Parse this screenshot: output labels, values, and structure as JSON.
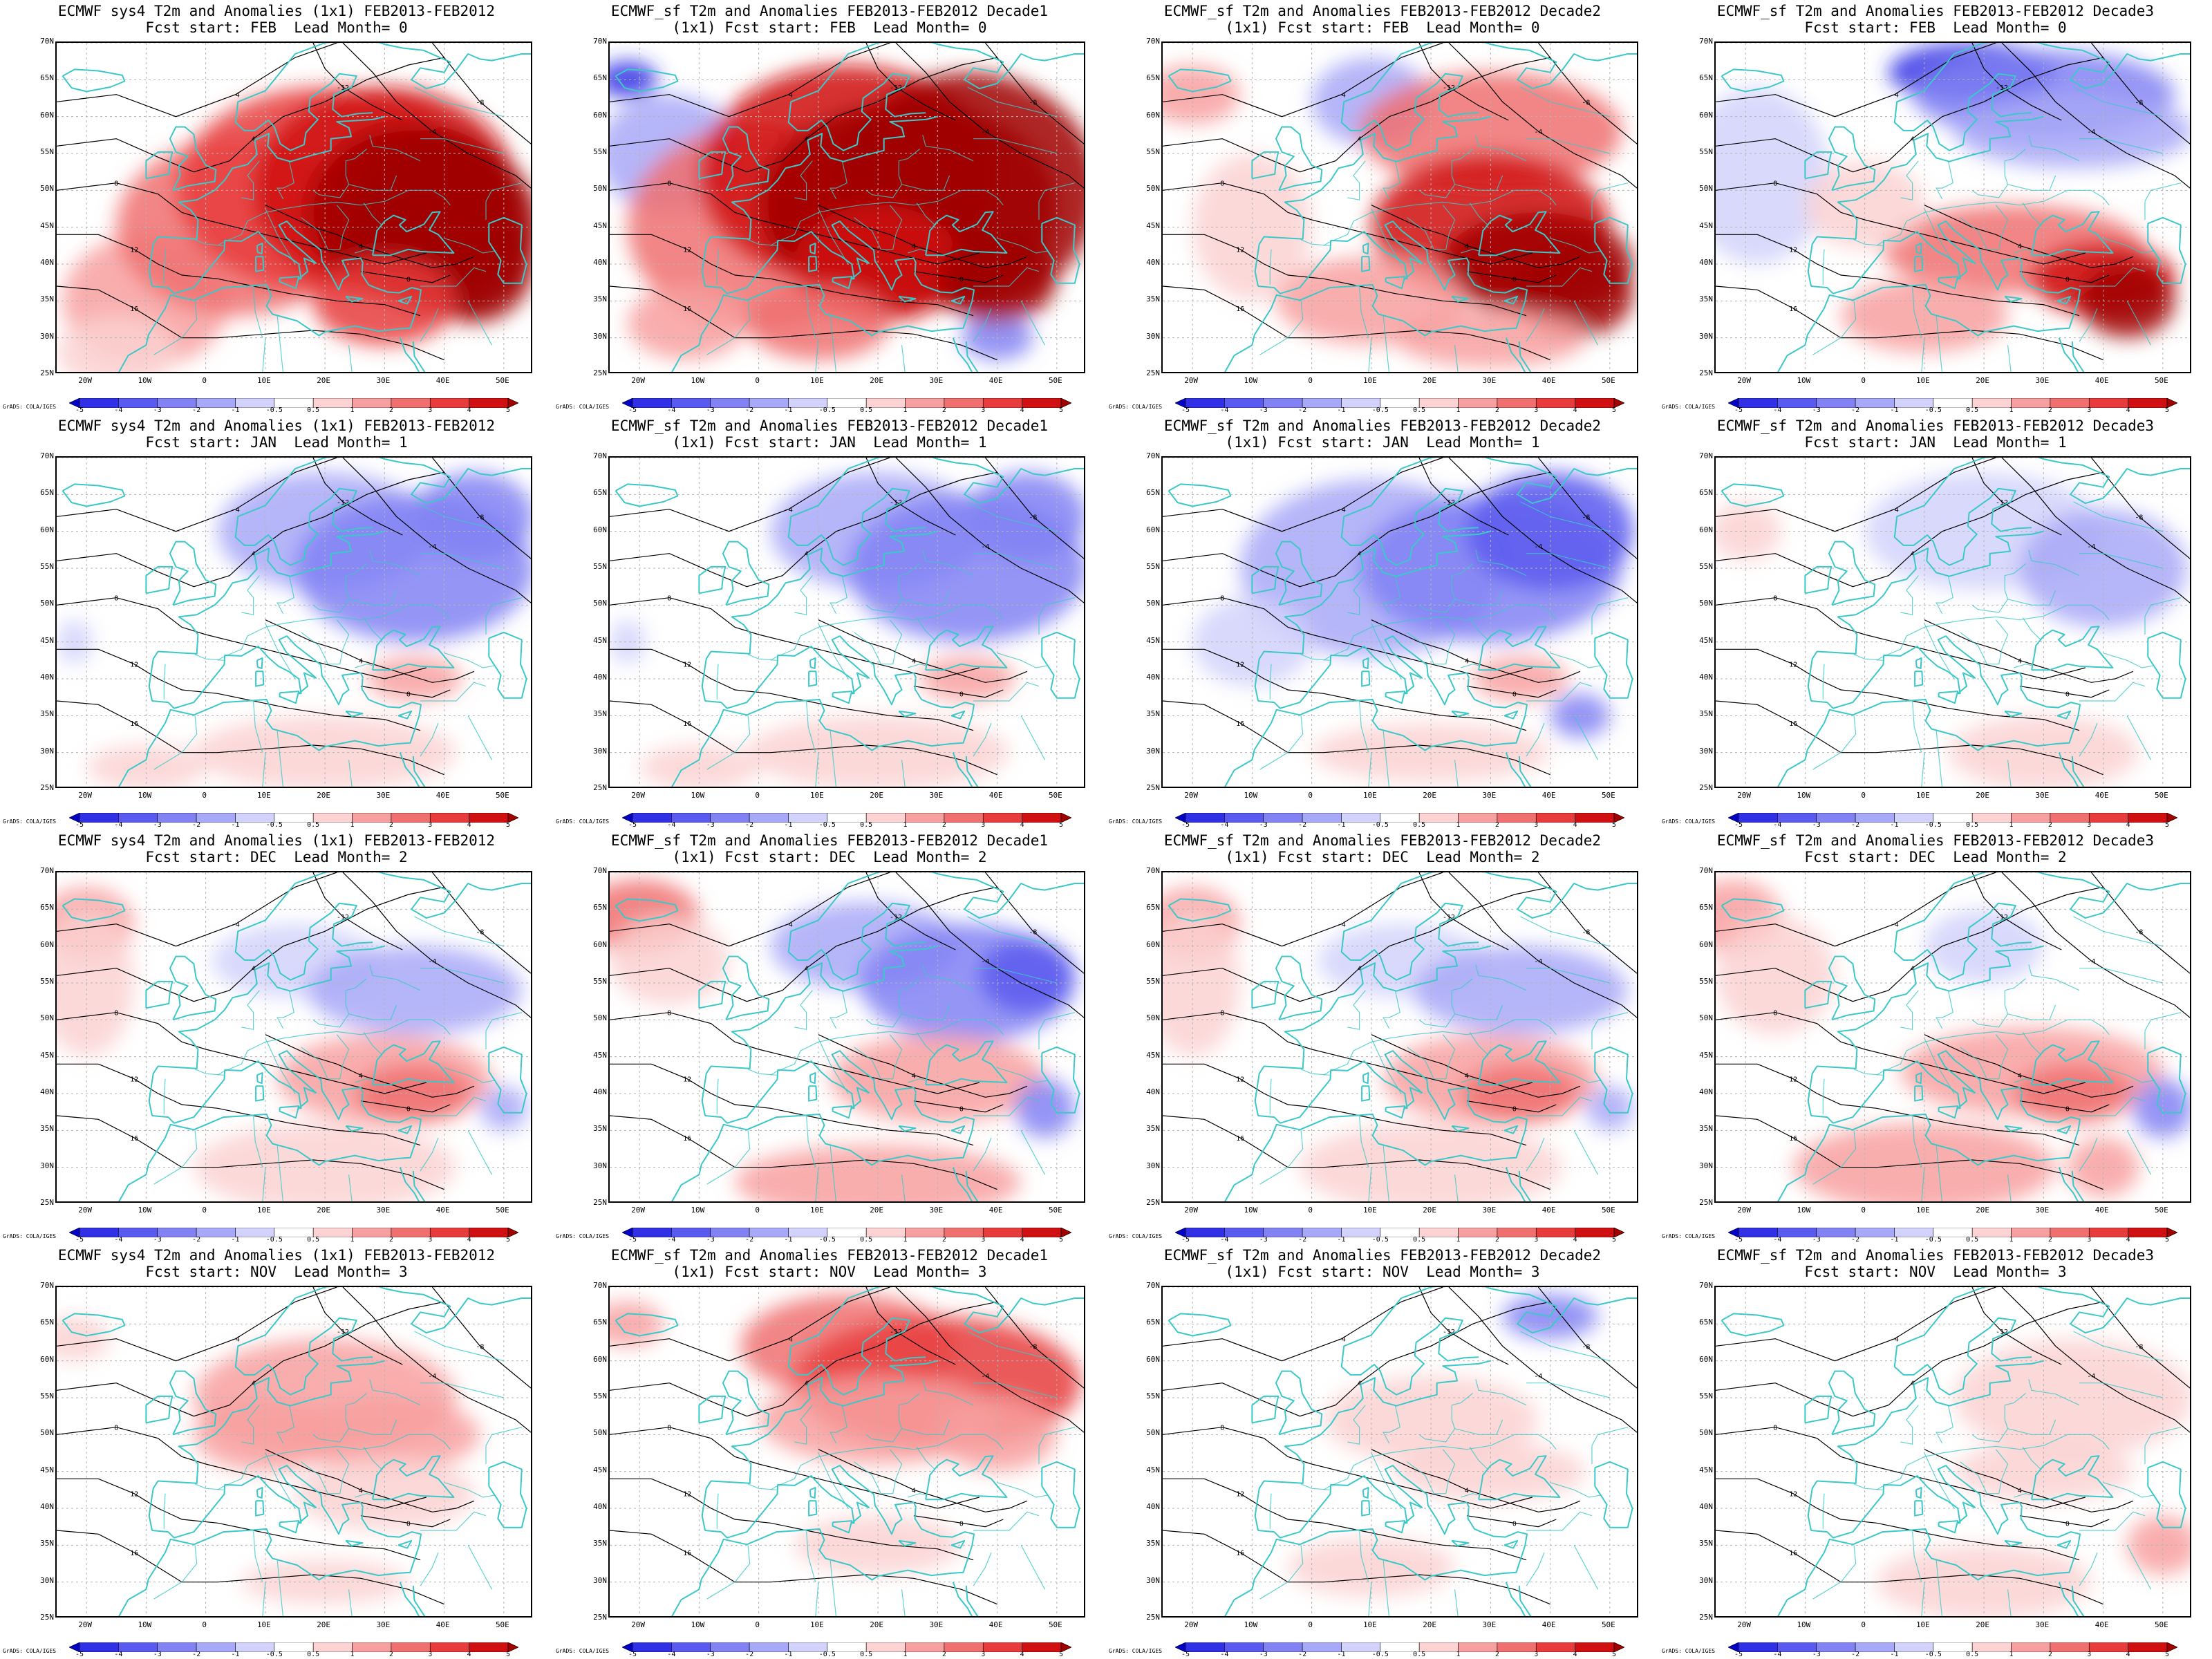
{
  "panels": [
    {
      "id": "r1c1",
      "title_line1": "ECMWF sys4 T2m and Anomalies (1x1) FEB2013-FEB2012",
      "title_line2": "Fcst start: FEB  Lead Month= 0",
      "anomaly_pattern": "strong-warm-east"
    },
    {
      "id": "r1c2",
      "title_line1": "ECMWF_sf T2m and Anomalies FEB2013-FEB2012 Decade1",
      "title_line2": "(1x1) Fcst start: FEB  Lead Month= 0",
      "anomaly_pattern": "strong-warm-all"
    },
    {
      "id": "r1c3",
      "title_line1": "ECMWF_sf T2m and Anomalies FEB2013-FEB2012 Decade2",
      "title_line2": "(1x1) Fcst start: FEB  Lead Month= 0",
      "anomaly_pattern": "warm-southeast"
    },
    {
      "id": "r1c4",
      "title_line1": "ECMWF_sf T2m and Anomalies FEB2013-FEB2012 Decade3",
      "title_line2": "Fcst start: FEB  Lead Month= 0",
      "anomaly_pattern": "cold-north-warm-south"
    },
    {
      "id": "r2c1",
      "title_line1": "ECMWF sys4 T2m and Anomalies (1x1) FEB2013-FEB2012",
      "title_line2": "Fcst start: JAN  Lead Month= 1",
      "anomaly_pattern": "cold-northeast"
    },
    {
      "id": "r2c2",
      "title_line1": "ECMWF_sf T2m and Anomalies FEB2013-FEB2012 Decade1",
      "title_line2": "(1x1) Fcst start: JAN  Lead Month= 1",
      "anomaly_pattern": "cold-northeast"
    },
    {
      "id": "r2c3",
      "title_line1": "ECMWF_sf T2m and Anomalies FEB2013-FEB2012 Decade2",
      "title_line2": "(1x1) Fcst start: JAN  Lead Month= 1",
      "anomaly_pattern": "cold-wide"
    },
    {
      "id": "r2c4",
      "title_line1": "ECMWF_sf T2m and Anomalies FEB2013-FEB2012 Decade3",
      "title_line2": "Fcst start: JAN  Lead Month= 1",
      "anomaly_pattern": "cold-weak"
    },
    {
      "id": "r3c1",
      "title_line1": "ECMWF sys4 T2m and Anomalies (1x1) FEB2013-FEB2012",
      "title_line2": "Fcst start: DEC  Lead Month= 2",
      "anomaly_pattern": "mixed-weak"
    },
    {
      "id": "r3c2",
      "title_line1": "ECMWF_sf T2m and Anomalies FEB2013-FEB2012 Decade1",
      "title_line2": "(1x1) Fcst start: DEC  Lead Month= 2",
      "anomaly_pattern": "mixed-cold-north"
    },
    {
      "id": "r3c3",
      "title_line1": "ECMWF_sf T2m and Anomalies FEB2013-FEB2012 Decade2",
      "title_line2": "(1x1) Fcst start: DEC  Lead Month= 2",
      "anomaly_pattern": "mixed-weak"
    },
    {
      "id": "r3c4",
      "title_line1": "ECMWF_sf T2m and Anomalies FEB2013-FEB2012 Decade3",
      "title_line2": "Fcst start: DEC  Lead Month= 2",
      "anomaly_pattern": "warm-south"
    },
    {
      "id": "r4c1",
      "title_line1": "ECMWF sys4 T2m and Anomalies (1x1) FEB2013-FEB2012",
      "title_line2": "Fcst start: NOV  Lead Month= 3",
      "anomaly_pattern": "warm-center"
    },
    {
      "id": "r4c2",
      "title_line1": "ECMWF_sf T2m and Anomalies FEB2013-FEB2012 Decade1",
      "title_line2": "(1x1) Fcst start: NOV  Lead Month= 3",
      "anomaly_pattern": "warm-north"
    },
    {
      "id": "r4c3",
      "title_line1": "ECMWF_sf T2m and Anomalies FEB2013-FEB2012 Decade2",
      "title_line2": "(1x1) Fcst start: NOV  Lead Month= 3",
      "anomaly_pattern": "weak-mixed"
    },
    {
      "id": "r4c4",
      "title_line1": "ECMWF_sf T2m and Anomalies FEB2013-FEB2012 Decade3",
      "title_line2": "Fcst start: NOV  Lead Month= 3",
      "anomaly_pattern": "weak-warm"
    }
  ],
  "lat_labels": [
    "70N",
    "65N",
    "60N",
    "55N",
    "50N",
    "45N",
    "40N",
    "35N",
    "30N",
    "25N"
  ],
  "lon_labels": [
    "20W",
    "10W",
    "0",
    "10E",
    "20E",
    "30E",
    "40E",
    "50E"
  ],
  "colorbar": {
    "labels": [
      "-5",
      "-4",
      "-3",
      "-2",
      "-1",
      "-0.5",
      "0.5",
      "1",
      "2",
      "3",
      "4",
      "5"
    ],
    "colors": [
      "#0000c8",
      "#3030e6",
      "#5a5af0",
      "#8282f4",
      "#a8a8f8",
      "#d2d2fc",
      "#ffffff",
      "#fcd2d2",
      "#f8a0a0",
      "#f07070",
      "#e83c3c",
      "#d01010",
      "#a00000"
    ]
  },
  "credit": "GrADS: COLA/IGES",
  "colors": {
    "coast": "#3cc8c8",
    "contour": "#000000",
    "grid": "#b4b4b4"
  }
}
